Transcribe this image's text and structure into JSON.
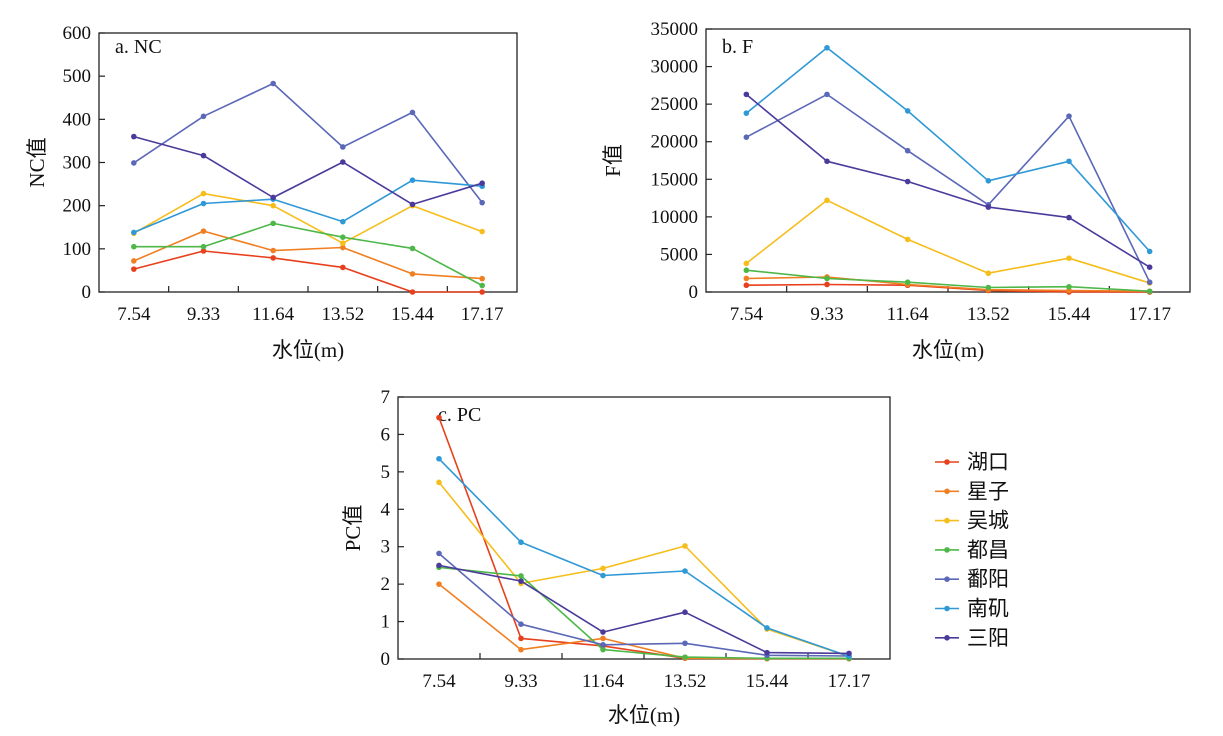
{
  "chart_data": [
    {
      "type": "line",
      "panel_label": "a. NC",
      "xlabel": "水位(m)",
      "ylabel": "NC值",
      "x": [
        "7.54",
        "9.33",
        "11.64",
        "13.52",
        "15.44",
        "17.17"
      ],
      "ylim": [
        0,
        600
      ],
      "yticks": [
        "0",
        "100",
        "200",
        "300",
        "400",
        "500",
        "600"
      ],
      "grid": false,
      "series": [
        {
          "name": "湖口",
          "color": "#e8401c",
          "values": [
            53,
            95,
            79,
            57,
            0,
            0
          ]
        },
        {
          "name": "星子",
          "color": "#f07f22",
          "values": [
            72,
            141,
            96,
            103,
            42,
            31
          ]
        },
        {
          "name": "吴城",
          "color": "#f6bd1b",
          "values": [
            136,
            228,
            200,
            113,
            200,
            140
          ]
        },
        {
          "name": "都昌",
          "color": "#4db748",
          "values": [
            105,
            105,
            159,
            127,
            101,
            15
          ]
        },
        {
          "name": "鄱阳",
          "color": "#5b68b8",
          "values": [
            299,
            407,
            483,
            336,
            416,
            207
          ]
        },
        {
          "name": "南矶",
          "color": "#2f98d6",
          "values": [
            138,
            205,
            215,
            163,
            259,
            245
          ]
        },
        {
          "name": "三阳",
          "color": "#4b3a9b",
          "values": [
            360,
            316,
            219,
            301,
            203,
            252
          ]
        }
      ]
    },
    {
      "type": "line",
      "panel_label": "b. F",
      "xlabel": "水位(m)",
      "ylabel": "F值",
      "x": [
        "7.54",
        "9.33",
        "11.64",
        "13.52",
        "15.44",
        "17.17"
      ],
      "ylim": [
        0,
        35000
      ],
      "yticks": [
        "0",
        "5000",
        "10000",
        "15000",
        "20000",
        "25000",
        "30000",
        "35000"
      ],
      "grid": false,
      "series": [
        {
          "name": "湖口",
          "color": "#e8401c",
          "values": [
            900,
            1000,
            900,
            200,
            0,
            0
          ]
        },
        {
          "name": "星子",
          "color": "#f07f22",
          "values": [
            1800,
            2000,
            1000,
            300,
            200,
            100
          ]
        },
        {
          "name": "吴城",
          "color": "#f6bd1b",
          "values": [
            3800,
            12200,
            7000,
            2500,
            4500,
            1200
          ]
        },
        {
          "name": "都昌",
          "color": "#4db748",
          "values": [
            2900,
            1800,
            1300,
            600,
            700,
            100
          ]
        },
        {
          "name": "鄱阳",
          "color": "#5b68b8",
          "values": [
            20600,
            26300,
            18800,
            11600,
            23400,
            1300
          ]
        },
        {
          "name": "南矶",
          "color": "#2f98d6",
          "values": [
            23800,
            32500,
            24100,
            14800,
            17400,
            5400
          ]
        },
        {
          "name": "三阳",
          "color": "#4b3a9b",
          "values": [
            26300,
            17400,
            14700,
            11300,
            9900,
            3300
          ]
        }
      ]
    },
    {
      "type": "line",
      "panel_label": "c. PC",
      "xlabel": "水位(m)",
      "ylabel": "PC值",
      "x": [
        "7.54",
        "9.33",
        "11.64",
        "13.52",
        "15.44",
        "17.17"
      ],
      "ylim": [
        0,
        7
      ],
      "yticks": [
        "0",
        "1",
        "2",
        "3",
        "4",
        "5",
        "6",
        "7"
      ],
      "grid": false,
      "series": [
        {
          "name": "湖口",
          "color": "#e8401c",
          "values": [
            6.45,
            0.55,
            0.35,
            0.02,
            0.01,
            0.01
          ]
        },
        {
          "name": "星子",
          "color": "#f07f22",
          "values": [
            2.0,
            0.25,
            0.55,
            0.02,
            0.01,
            0.01
          ]
        },
        {
          "name": "吴城",
          "color": "#f6bd1b",
          "values": [
            4.72,
            2.02,
            2.42,
            3.02,
            0.8,
            0.07
          ]
        },
        {
          "name": "都昌",
          "color": "#4db748",
          "values": [
            2.45,
            2.22,
            0.25,
            0.05,
            0.02,
            0.02
          ]
        },
        {
          "name": "鄱阳",
          "color": "#5b68b8",
          "values": [
            2.82,
            0.93,
            0.38,
            0.42,
            0.1,
            0.08
          ]
        },
        {
          "name": "南矶",
          "color": "#2f98d6",
          "values": [
            5.35,
            3.12,
            2.23,
            2.35,
            0.83,
            0.07
          ]
        },
        {
          "name": "三阳",
          "color": "#4b3a9b",
          "values": [
            2.5,
            2.08,
            0.72,
            1.25,
            0.17,
            0.15
          ]
        }
      ]
    }
  ],
  "legend": {
    "placement": "right of panel c",
    "items": [
      {
        "label": "湖口",
        "color": "#e8401c"
      },
      {
        "label": "星子",
        "color": "#f07f22"
      },
      {
        "label": "吴城",
        "color": "#f6bd1b"
      },
      {
        "label": "都昌",
        "color": "#4db748"
      },
      {
        "label": "鄱阳",
        "color": "#5b68b8"
      },
      {
        "label": "南矶",
        "color": "#2f98d6"
      },
      {
        "label": "三阳",
        "color": "#4b3a9b"
      }
    ]
  }
}
